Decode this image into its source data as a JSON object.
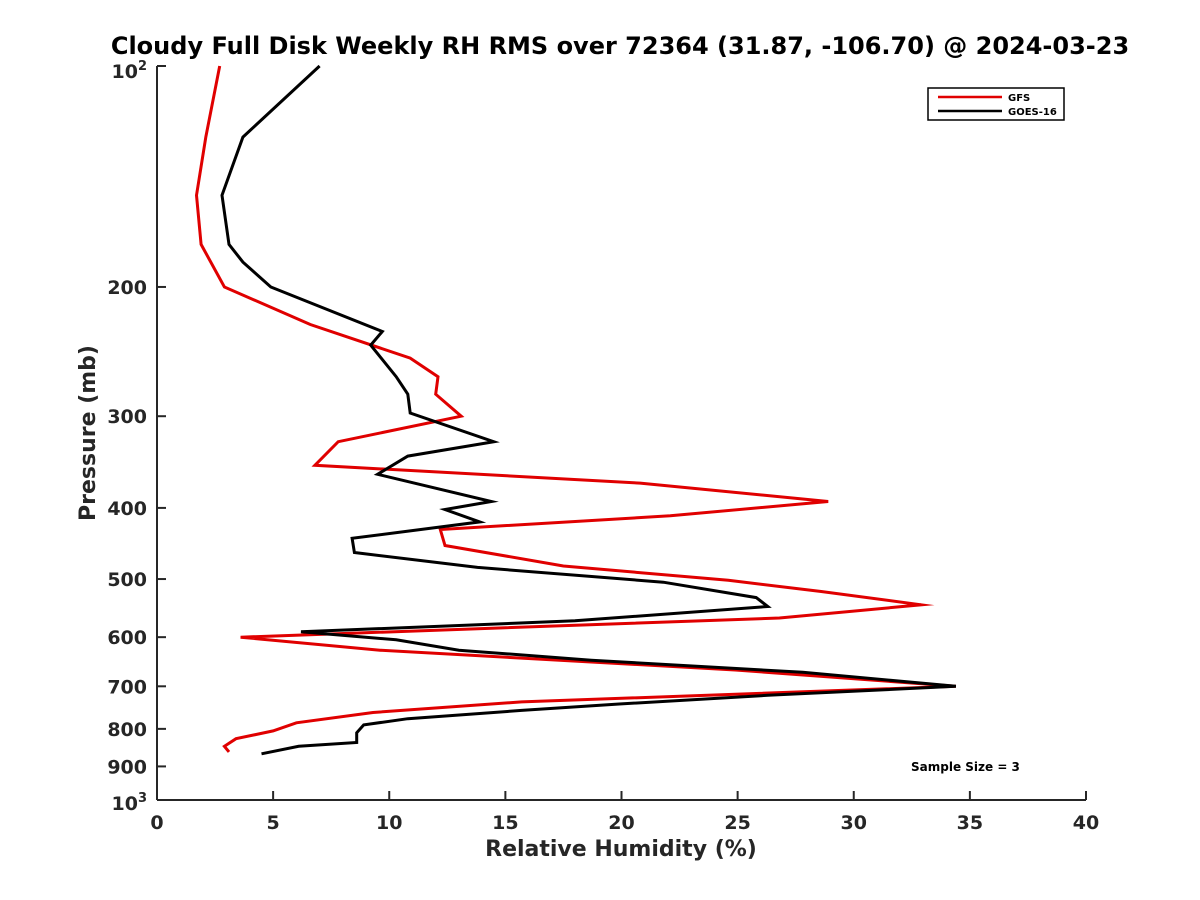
{
  "chart_data": {
    "type": "line",
    "title": "Cloudy Full Disk Weekly RH RMS over 72364 (31.87, -106.70) @ 2024-03-23",
    "xlabel": "Relative Humidity (%)",
    "ylabel": "Pressure (mb)",
    "xlim": [
      0,
      40
    ],
    "ylim": [
      100,
      1000
    ],
    "yscale": "log",
    "y_reversed": true,
    "xticks": [
      0,
      5,
      10,
      15,
      20,
      25,
      30,
      35,
      40
    ],
    "xtick_labels": [
      "0",
      "5",
      "10",
      "15",
      "20",
      "25",
      "30",
      "35",
      "40"
    ],
    "yticks": [
      200,
      300,
      400,
      500,
      600,
      700,
      800,
      900
    ],
    "ytick_labels": [
      "200",
      "300",
      "400",
      "500",
      "600",
      "700",
      "800",
      "900"
    ],
    "ytick_top": {
      "base": "10",
      "exp": "2"
    },
    "ytick_bottom": {
      "base": "10",
      "exp": "3"
    },
    "grid": false,
    "legend": "top-right",
    "annotation": "Sample Size = 3",
    "series": [
      {
        "name": "GFS",
        "color": "#e00000",
        "points": [
          [
            2.7,
            100
          ],
          [
            2.1,
            125
          ],
          [
            1.7,
            150
          ],
          [
            1.9,
            175
          ],
          [
            2.9,
            200
          ],
          [
            6.6,
            225
          ],
          [
            10.9,
            250
          ],
          [
            12.1,
            265
          ],
          [
            12.0,
            280
          ],
          [
            13.1,
            300
          ],
          [
            7.8,
            325
          ],
          [
            6.8,
            350
          ],
          [
            20.8,
            370
          ],
          [
            28.9,
            392
          ],
          [
            22.1,
            410
          ],
          [
            12.2,
            428
          ],
          [
            12.4,
            450
          ],
          [
            17.5,
            480
          ],
          [
            24.6,
            502
          ],
          [
            28.6,
            520
          ],
          [
            32.9,
            542
          ],
          [
            26.8,
            565
          ],
          [
            3.6,
            600
          ],
          [
            9.6,
            625
          ],
          [
            24.9,
            665
          ],
          [
            34.4,
            700
          ],
          [
            15.7,
            735
          ],
          [
            9.3,
            760
          ],
          [
            6.0,
            785
          ],
          [
            5.0,
            805
          ],
          [
            3.4,
            825
          ],
          [
            2.9,
            845
          ],
          [
            3.1,
            860
          ]
        ]
      },
      {
        "name": "GOES-16",
        "color": "#000000",
        "points": [
          [
            7.0,
            100
          ],
          [
            3.7,
            125
          ],
          [
            2.8,
            150
          ],
          [
            3.1,
            175
          ],
          [
            3.7,
            185
          ],
          [
            4.9,
            200
          ],
          [
            9.7,
            230
          ],
          [
            9.2,
            240
          ],
          [
            10.3,
            265
          ],
          [
            10.8,
            280
          ],
          [
            10.9,
            297
          ],
          [
            14.5,
            325
          ],
          [
            10.8,
            340
          ],
          [
            9.5,
            360
          ],
          [
            14.4,
            392
          ],
          [
            12.4,
            402
          ],
          [
            13.9,
            418
          ],
          [
            8.4,
            440
          ],
          [
            8.5,
            460
          ],
          [
            13.8,
            482
          ],
          [
            21.8,
            505
          ],
          [
            25.8,
            530
          ],
          [
            26.3,
            545
          ],
          [
            18.0,
            570
          ],
          [
            6.2,
            590
          ],
          [
            10.3,
            605
          ],
          [
            13.0,
            625
          ],
          [
            18.7,
            645
          ],
          [
            27.8,
            670
          ],
          [
            34.4,
            700
          ],
          [
            26.3,
            720
          ],
          [
            19.9,
            740
          ],
          [
            15.7,
            755
          ],
          [
            10.8,
            775
          ],
          [
            8.9,
            790
          ],
          [
            8.6,
            810
          ],
          [
            8.6,
            835
          ],
          [
            6.1,
            845
          ],
          [
            4.5,
            865
          ]
        ]
      }
    ]
  }
}
